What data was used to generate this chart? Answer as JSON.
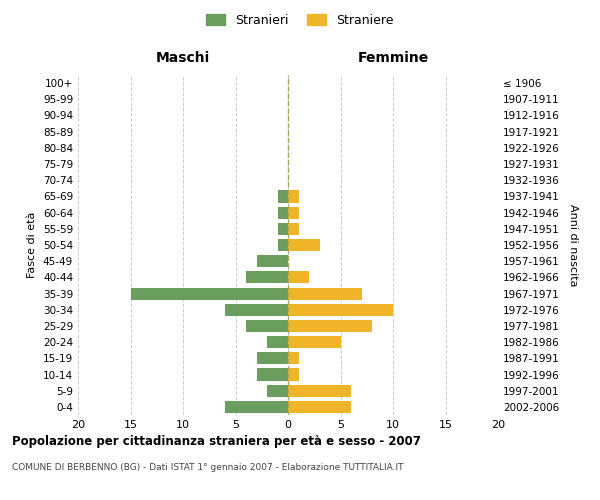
{
  "age_groups": [
    "100+",
    "95-99",
    "90-94",
    "85-89",
    "80-84",
    "75-79",
    "70-74",
    "65-69",
    "60-64",
    "55-59",
    "50-54",
    "45-49",
    "40-44",
    "35-39",
    "30-34",
    "25-29",
    "20-24",
    "15-19",
    "10-14",
    "5-9",
    "0-4"
  ],
  "birth_years": [
    "≤ 1906",
    "1907-1911",
    "1912-1916",
    "1917-1921",
    "1922-1926",
    "1927-1931",
    "1932-1936",
    "1937-1941",
    "1942-1946",
    "1947-1951",
    "1952-1956",
    "1957-1961",
    "1962-1966",
    "1967-1971",
    "1972-1976",
    "1977-1981",
    "1982-1986",
    "1987-1991",
    "1992-1996",
    "1997-2001",
    "2002-2006"
  ],
  "maschi": [
    0,
    0,
    0,
    0,
    0,
    0,
    0,
    1,
    1,
    1,
    1,
    3,
    4,
    15,
    6,
    4,
    2,
    3,
    3,
    2,
    6
  ],
  "femmine": [
    0,
    0,
    0,
    0,
    0,
    0,
    0,
    1,
    1,
    1,
    3,
    0,
    2,
    7,
    10,
    8,
    5,
    1,
    1,
    6,
    6
  ],
  "maschi_color": "#6a9e5e",
  "femmine_color": "#f0b429",
  "background_color": "#ffffff",
  "grid_color": "#cccccc",
  "title": "Popolazione per cittadinanza straniera per età e sesso - 2007",
  "subtitle": "COMUNE DI BERBENNO (BG) - Dati ISTAT 1° gennaio 2007 - Elaborazione TUTTITALIA.IT",
  "xlabel_left": "Maschi",
  "xlabel_right": "Femmine",
  "ylabel_left": "Fasce di età",
  "ylabel_right": "Anni di nascita",
  "legend_stranieri": "Stranieri",
  "legend_straniere": "Straniere",
  "xlim": 20,
  "bar_height": 0.75
}
